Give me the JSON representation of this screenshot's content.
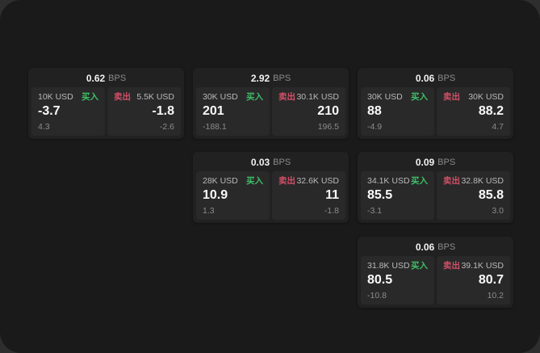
{
  "colors": {
    "outer_background": "#2e2e2e",
    "screen_background": "#1a1a1a",
    "card_background": "#212121",
    "panel_background": "#292929",
    "buy_green": "#3fbf68",
    "sell_red": "#d15068",
    "primary_text": "#f2f2f2",
    "muted_text": "#8b8b8b",
    "label_text": "#b9b9b9"
  },
  "cards": [
    {
      "bps_value": "0.62",
      "bps_unit": "BPS",
      "buy": {
        "amount": "10K USD",
        "side_label": "买入",
        "price": "-3.7",
        "change": "4.3"
      },
      "sell": {
        "side_label": "卖出",
        "amount": "5.5K USD",
        "price": "-1.8",
        "change": "-2.6"
      }
    },
    {
      "bps_value": "2.92",
      "bps_unit": "BPS",
      "buy": {
        "amount": "30K USD",
        "side_label": "买入",
        "price": "201",
        "change": "-188.1"
      },
      "sell": {
        "side_label": "卖出",
        "amount": "30.1K USD",
        "price": "210",
        "change": "196.5"
      }
    },
    {
      "bps_value": "0.06",
      "bps_unit": "BPS",
      "buy": {
        "amount": "30K USD",
        "side_label": "买入",
        "price": "88",
        "change": "-4.9"
      },
      "sell": {
        "side_label": "卖出",
        "amount": "30K USD",
        "price": "88.2",
        "change": "4.7"
      }
    },
    {
      "bps_value": "0.03",
      "bps_unit": "BPS",
      "buy": {
        "amount": "28K USD",
        "side_label": "买入",
        "price": "10.9",
        "change": "1.3"
      },
      "sell": {
        "side_label": "卖出",
        "amount": "32.6K USD",
        "price": "11",
        "change": "-1.8"
      }
    },
    {
      "bps_value": "0.09",
      "bps_unit": "BPS",
      "buy": {
        "amount": "34.1K USD",
        "side_label": "买入",
        "price": "85.5",
        "change": "-3.1"
      },
      "sell": {
        "side_label": "卖出",
        "amount": "32.8K USD",
        "price": "85.8",
        "change": "3.0"
      }
    },
    {
      "bps_value": "0.06",
      "bps_unit": "BPS",
      "buy": {
        "amount": "31.8K USD",
        "side_label": "买入",
        "price": "80.5",
        "change": "-10.8"
      },
      "sell": {
        "side_label": "卖出",
        "amount": "39.1K USD",
        "price": "80.7",
        "change": "10.2"
      }
    }
  ]
}
